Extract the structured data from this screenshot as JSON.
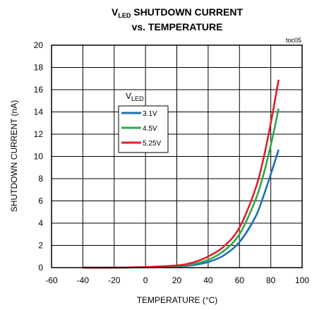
{
  "chart_data": {
    "type": "line",
    "title": {
      "line1_main": "V",
      "line1_sub": "LED",
      "line1_rest": " SHUTDOWN CURRENT",
      "line2": "vs. TEMPERATURE"
    },
    "figure_id": "toc05",
    "xlabel": "TEMPERATURE (°C)",
    "ylabel": "SHUTDOWN CURRENT (nA)",
    "xlim": [
      -60,
      100
    ],
    "ylim": [
      0,
      20
    ],
    "x_ticks": [
      -60,
      -40,
      -20,
      0,
      20,
      40,
      60,
      80,
      100
    ],
    "y_ticks": [
      0,
      2,
      4,
      6,
      8,
      10,
      12,
      14,
      16,
      18,
      20
    ],
    "grid": true,
    "legend": {
      "title_main": "V",
      "title_sub": "LED",
      "position": "upper-left"
    },
    "colors": {
      "3.1V": "#1f6fb5",
      "4.5V": "#2fa84f",
      "5.25V": "#e0202a"
    },
    "series": [
      {
        "name": "3.1V",
        "x": [
          -40,
          -20,
          0,
          20,
          30,
          40,
          50,
          60,
          70,
          75,
          80,
          85
        ],
        "y": [
          0,
          0,
          0.03,
          0.1,
          0.22,
          0.5,
          1.1,
          2.3,
          4.5,
          6.3,
          8.4,
          10.6
        ]
      },
      {
        "name": "4.5V",
        "x": [
          -40,
          -20,
          0,
          20,
          30,
          40,
          50,
          60,
          70,
          75,
          80,
          85
        ],
        "y": [
          0,
          0,
          0.04,
          0.15,
          0.3,
          0.7,
          1.5,
          3.0,
          6.0,
          8.2,
          11.0,
          14.3
        ]
      },
      {
        "name": "5.25V",
        "x": [
          -40,
          -20,
          0,
          20,
          30,
          40,
          50,
          60,
          70,
          75,
          80,
          85
        ],
        "y": [
          0,
          0,
          0.05,
          0.2,
          0.45,
          1.0,
          1.9,
          3.6,
          7.0,
          9.6,
          13.0,
          16.9
        ]
      }
    ]
  }
}
